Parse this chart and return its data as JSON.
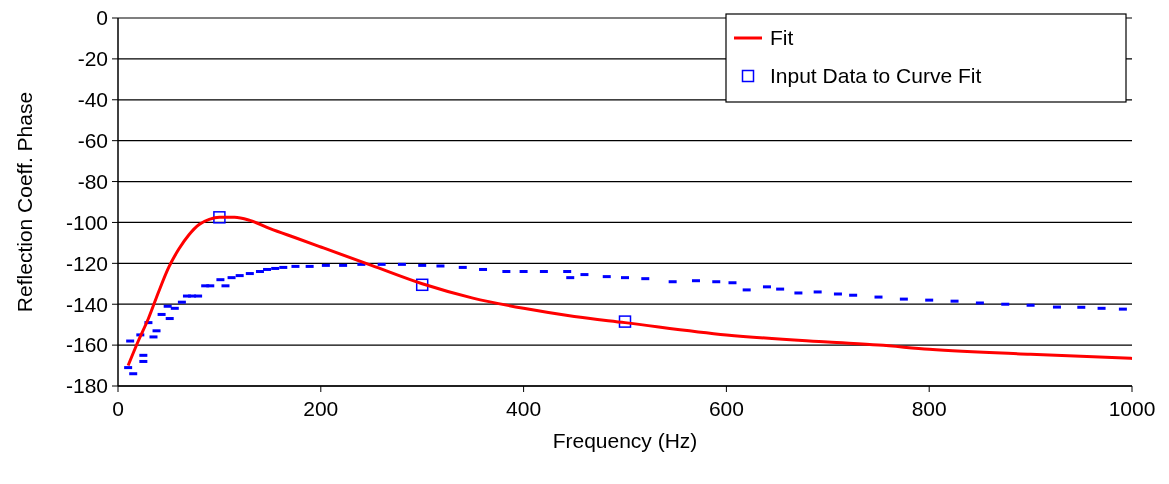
{
  "chart_data": {
    "type": "line",
    "xlabel": "Frequency (Hz)",
    "ylabel": "Reflection Coeff. Phase",
    "xlim": [
      0,
      1000
    ],
    "xticks": [
      0,
      200,
      400,
      600,
      800,
      1000
    ],
    "ylim": [
      -180,
      0
    ],
    "yticks": [
      -180,
      -160,
      -140,
      -120,
      -100,
      -80,
      -60,
      -40,
      -20,
      0
    ],
    "grid": "y",
    "legend": "top right",
    "series": [
      {
        "name": "Fit",
        "color": "#ff0000",
        "marker": "none",
        "x": [
          10,
          20,
          30,
          40,
          50,
          60,
          70,
          80,
          90,
          100,
          115,
          130,
          150,
          175,
          200,
          250,
          300,
          350,
          400,
          450,
          500,
          600,
          700,
          750,
          800,
          900,
          1000
        ],
        "values": [
          -170,
          -158,
          -147,
          -134,
          -122,
          -113,
          -106,
          -101,
          -98.5,
          -97.5,
          -97.5,
          -99,
          -103,
          -107.5,
          -112,
          -121,
          -130,
          -137,
          -142,
          -146,
          -149,
          -155,
          -158.5,
          -160,
          -162,
          -164.5,
          -166.5
        ]
      },
      {
        "name": "Input Data to Curve Fit",
        "type": "scatter",
        "color": "#0000ff",
        "marker": "square",
        "x": [
          100,
          300,
          500
        ],
        "values": [
          -97.5,
          -130.5,
          -148.5
        ]
      },
      {
        "type": "scatter",
        "color": "#0000ff",
        "x": [
          10,
          12,
          15,
          22,
          25,
          25,
          30,
          35,
          38,
          43,
          49,
          51,
          56,
          63,
          68,
          73,
          79,
          86,
          91,
          101,
          106,
          112,
          120,
          130,
          140,
          147,
          155,
          163,
          175,
          189,
          205,
          222,
          240,
          260,
          280,
          300,
          318,
          340,
          360,
          383,
          400,
          420,
          443,
          446,
          460,
          482,
          500,
          520,
          547,
          570,
          590,
          606,
          620,
          640,
          653,
          671,
          690,
          710,
          725,
          750,
          775,
          800,
          825,
          850,
          875,
          900,
          926,
          950,
          970,
          991
        ],
        "values": [
          -171,
          -158,
          -174,
          -155,
          -168,
          -165,
          -149,
          -156,
          -153,
          -145,
          -141,
          -147,
          -142,
          -139,
          -136,
          -136,
          -136,
          -131,
          -131,
          -128,
          -131,
          -127,
          -126,
          -125,
          -124,
          -123,
          -122.5,
          -122,
          -121.5,
          -121.5,
          -121,
          -121,
          -120.5,
          -120.5,
          -120.5,
          -121,
          -121.3,
          -122,
          -123,
          -124,
          -124,
          -124,
          -124,
          -127,
          -125.5,
          -126.5,
          -127,
          -127.5,
          -129,
          -128.5,
          -129,
          -129.5,
          -133,
          -131.5,
          -132.6,
          -134.5,
          -134,
          -135,
          -135.6,
          -136.5,
          -137.5,
          -138,
          -138.5,
          -139.4,
          -140,
          -140.5,
          -141.4,
          -141.5,
          -142,
          -142.4
        ]
      }
    ]
  }
}
